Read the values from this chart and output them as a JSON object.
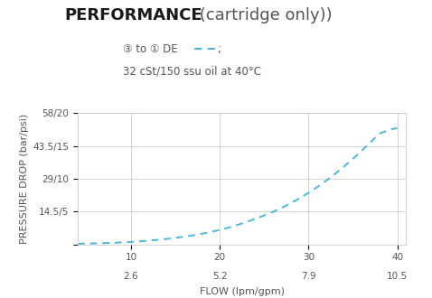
{
  "title_bold": "PERFORMANCE",
  "title_normal": " (cartridge only))",
  "legend_text": "③ to ① DE",
  "legend_semi": ";",
  "legend_line2": "32 cSt/150 ssu oil at 40°C",
  "ylabel": "PRESSURE DROP (bar/psi)",
  "xlabel": "FLOW (lpm/gpm)",
  "yticks": [
    0,
    14.5,
    29,
    43.5,
    58
  ],
  "ytick_labels": [
    "",
    "14.5/5",
    "29/10",
    "43.5/15",
    "58/20"
  ],
  "xticks": [
    10,
    20,
    30,
    40
  ],
  "xtick_labels_top": [
    "10",
    "20",
    "30",
    "40"
  ],
  "xtick_labels_bot": [
    "2.6",
    "5.2",
    "7.9",
    "10.5"
  ],
  "xmin": 4,
  "xmax": 41,
  "ymin": 0,
  "ymax": 58,
  "curve_x": [
    4,
    5,
    6,
    7,
    8,
    9,
    10,
    11,
    12,
    13,
    14,
    15,
    16,
    17,
    18,
    19,
    20,
    21,
    22,
    23,
    24,
    25,
    26,
    27,
    28,
    29,
    30,
    31,
    32,
    33,
    34,
    35,
    36,
    37,
    38,
    39,
    40
  ],
  "curve_y": [
    0.3,
    0.35,
    0.45,
    0.55,
    0.7,
    0.9,
    1.1,
    1.35,
    1.65,
    2.0,
    2.4,
    2.85,
    3.4,
    4.0,
    4.7,
    5.5,
    6.4,
    7.4,
    8.6,
    9.9,
    11.3,
    12.8,
    14.4,
    16.2,
    18.2,
    20.4,
    22.8,
    25.4,
    28.2,
    31.2,
    34.4,
    37.8,
    41.4,
    45.2,
    49.0,
    50.5,
    51.5
  ],
  "curve_color": "#4ab8d8",
  "grid_color": "#cccccc",
  "text_color": "#555555",
  "background_color": "#ffffff",
  "title_fontsize": 13,
  "axis_label_fontsize": 8,
  "tick_fontsize": 7.5,
  "legend_fontsize": 8.5
}
